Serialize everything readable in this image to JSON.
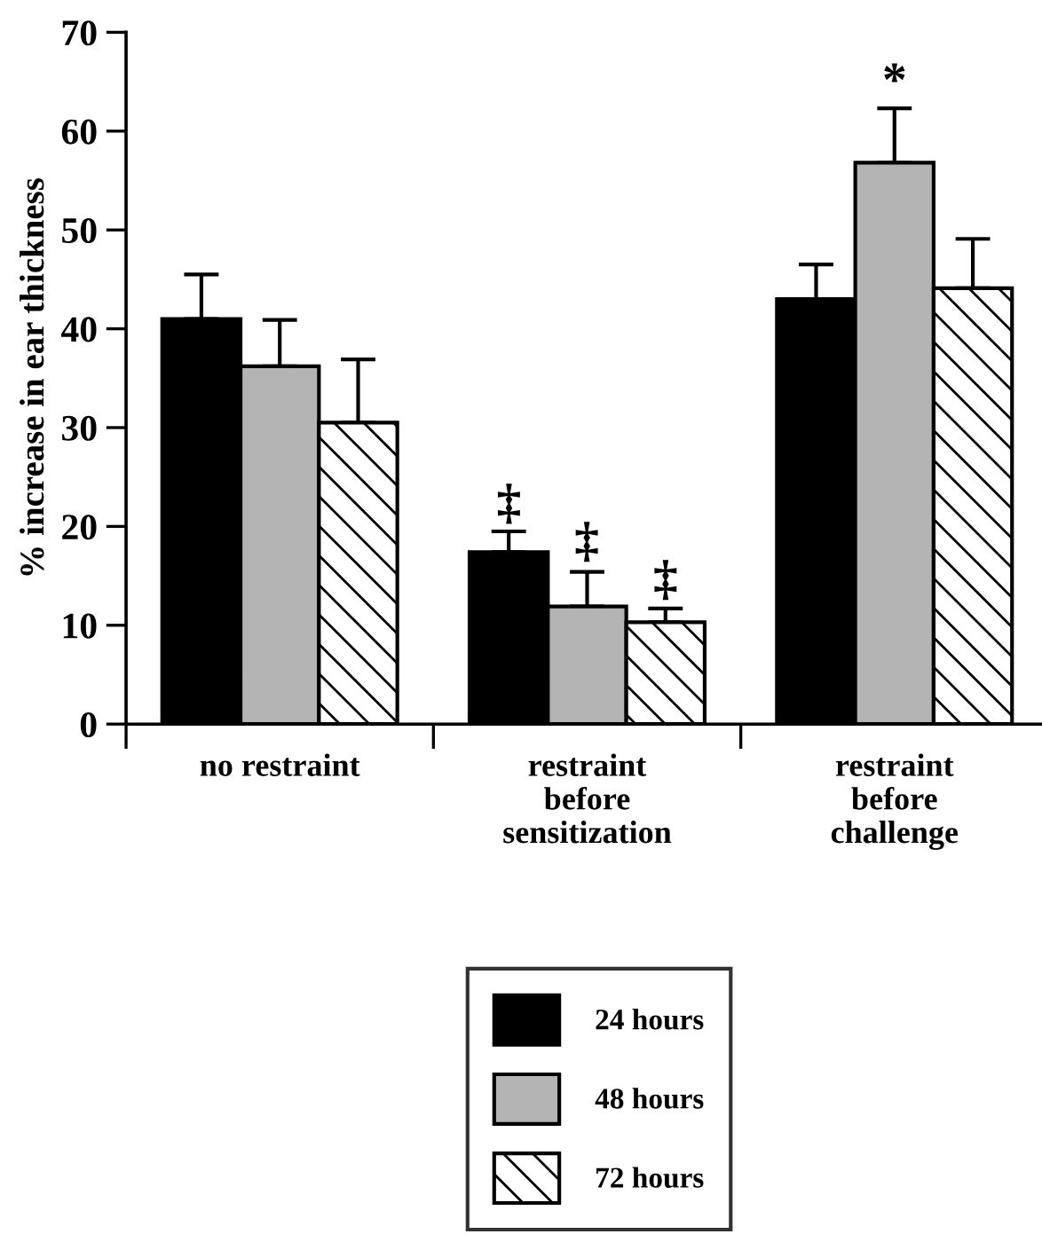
{
  "chart_data": {
    "type": "bar",
    "ylabel": "% increase in ear thickness",
    "categories": [
      "no restraint",
      "restraint\nbefore\nsensitization",
      "restraint\nbefore\nchallenge"
    ],
    "series": [
      {
        "name": "24 hours",
        "color": "#000000",
        "values": [
          41.0,
          17.4,
          43.0
        ],
        "errors": [
          [
            41.0,
            45.5
          ],
          [
            17.4,
            19.5
          ],
          [
            43.0,
            46.5
          ]
        ]
      },
      {
        "name": "48 hours",
        "color": "#b4b4b4",
        "values": [
          36.2,
          11.9,
          56.8
        ],
        "errors": [
          [
            36.2,
            40.9
          ],
          [
            11.9,
            15.4
          ],
          [
            56.8,
            62.3
          ]
        ]
      },
      {
        "name": "72 hours",
        "color": "#ffffff",
        "values": [
          30.5,
          10.3,
          44.1
        ],
        "errors": [
          [
            30.5,
            36.9
          ],
          [
            10.3,
            11.7
          ],
          [
            44.1,
            49.1
          ]
        ]
      }
    ],
    "annotations": [
      "‡",
      "‡",
      "‡",
      "*"
    ],
    "ylim": [
      0,
      70
    ],
    "yticks": [
      0,
      10,
      20,
      30,
      40,
      50,
      60,
      70
    ],
    "grid": false,
    "legend": "bottom"
  }
}
